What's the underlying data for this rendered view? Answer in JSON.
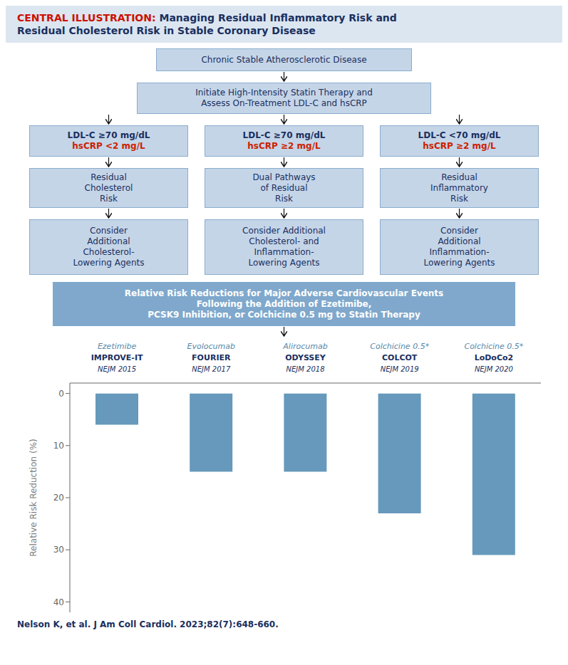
{
  "chart_data": {
    "type": "bar",
    "title": "CENTRAL ILLUSTRATION: Managing Residual Inflammatory Risk and",
    "subtitle": "Residual Cholesterol Risk in Stable Coronary Disease",
    "annotations": [
      [
        "Chronic Stable Atherosclerotic Disease"
      ],
      [
        "Initiate High-Intensity Statin Therapy and\nAssess On-Treatment LDL-C and hsCRP"
      ],
      [
        "LDL-C ≥70 mg/dL\nhsCRP <2 mg/L",
        "LDL-C ≥70 mg/dL\nhsCRP ≥2 mg/L",
        "LDL-C <70 mg/dL\nhsCRP ≥2 mg/L"
      ],
      [
        "Residual\nCholesterol\nRisk",
        "Dual Pathways\nof Residual\nRisk",
        "Residual\nInflammatory\nRisk"
      ],
      [
        "Consider\nAdditional\nCholesterol-\nLowering Agents",
        "Consider Additional\nCholesterol- and\nInflammation-\nLowering Agents",
        "Consider\nAdditional\nInflammation-\nLowering Agents"
      ],
      [
        "Relative Risk Reductions for Major Adverse Cardiovascular Events\nFollowing the Addition of Ezetimibe,\nPCSK9 Inhibition, or Colchicine 0.5 mg to Statin Therapy"
      ],
      [
        "Nelson K, et al. J Am Coll Cardiol. 2023;82(7):648-660."
      ]
    ],
    "categories": [
      "Ezetimibe\nIMPROVE-IT\nNEJM 2015",
      "Evolocumab\nFOURIER\nNEJM 2017",
      "Alirocumab\nODYSSEY\nNEJM 2018",
      "Colchicine 0.5*\nCOLCOT\nNEJM 2019",
      "Colchicine 0.5*\nLoDoCo2\nNEJM 2020"
    ],
    "values": [
      6,
      15,
      15,
      23,
      31
    ],
    "color": "#6699bb",
    "y_label": "Relative Risk Reduction (%)",
    "ylim": [
      -2,
      42
    ],
    "yticks": [
      0,
      10,
      20,
      30,
      40
    ],
    "grid": false
  }
}
